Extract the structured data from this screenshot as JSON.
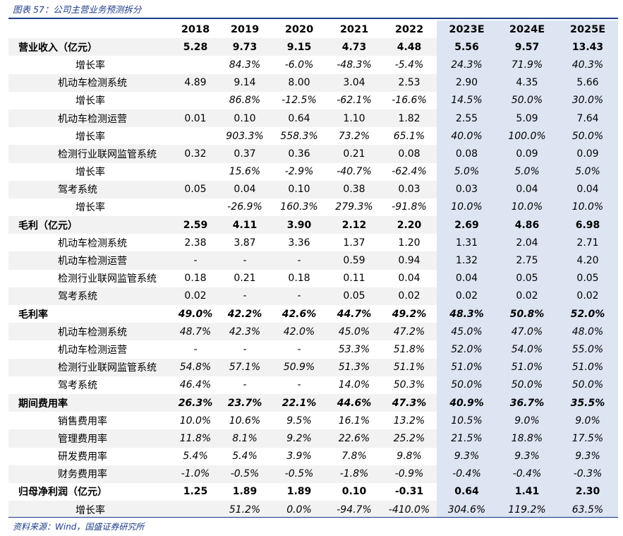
{
  "caption": "图表 57：公司主营业务预测拆分",
  "source": "资料来源：Wind，国盛证券研究所",
  "headers": [
    "2018",
    "2019",
    "2020",
    "2021",
    "2022",
    "2023E",
    "2024E",
    "2025E"
  ],
  "rows": [
    {
      "label": "营业收入（亿元）",
      "kind": "main",
      "italic": false,
      "values": [
        "5.28",
        "9.73",
        "9.15",
        "4.73",
        "4.48",
        "5.56",
        "9.57",
        "13.43"
      ]
    },
    {
      "label": "增长率",
      "kind": "growth",
      "italic": true,
      "values": [
        "",
        "84.3%",
        "-6.0%",
        "-48.3%",
        "-5.4%",
        "24.3%",
        "71.9%",
        "40.3%"
      ]
    },
    {
      "label": "机动车检测系统",
      "kind": "sub",
      "italic": false,
      "values": [
        "4.89",
        "9.14",
        "8.00",
        "3.04",
        "2.53",
        "2.90",
        "4.35",
        "5.66"
      ]
    },
    {
      "label": "增长率",
      "kind": "growth",
      "italic": true,
      "values": [
        "",
        "86.8%",
        "-12.5%",
        "-62.1%",
        "-16.6%",
        "14.5%",
        "50.0%",
        "30.0%"
      ]
    },
    {
      "label": "机动车检测运营",
      "kind": "sub",
      "italic": false,
      "values": [
        "0.01",
        "0.10",
        "0.64",
        "1.10",
        "1.82",
        "2.55",
        "5.09",
        "7.64"
      ]
    },
    {
      "label": "增长率",
      "kind": "growth",
      "italic": true,
      "values": [
        "",
        "903.3%",
        "558.3%",
        "73.2%",
        "65.1%",
        "40.0%",
        "100.0%",
        "50.0%"
      ]
    },
    {
      "label": "检测行业联网监管系统",
      "kind": "sub",
      "italic": false,
      "values": [
        "0.32",
        "0.37",
        "0.36",
        "0.21",
        "0.08",
        "0.08",
        "0.09",
        "0.09"
      ]
    },
    {
      "label": "增长率",
      "kind": "growth",
      "italic": true,
      "values": [
        "",
        "15.6%",
        "-2.9%",
        "-40.7%",
        "-62.4%",
        "5.0%",
        "5.0%",
        "5.0%"
      ]
    },
    {
      "label": "驾考系统",
      "kind": "sub",
      "italic": false,
      "values": [
        "0.05",
        "0.04",
        "0.10",
        "0.38",
        "0.03",
        "0.03",
        "0.04",
        "0.04"
      ]
    },
    {
      "label": "增长率",
      "kind": "growth",
      "italic": true,
      "values": [
        "",
        "-26.9%",
        "160.3%",
        "279.3%",
        "-91.8%",
        "10.0%",
        "10.0%",
        "10.0%"
      ]
    },
    {
      "label": "毛利（亿元）",
      "kind": "main",
      "italic": false,
      "values": [
        "2.59",
        "4.11",
        "3.90",
        "2.12",
        "2.20",
        "2.69",
        "4.86",
        "6.98"
      ]
    },
    {
      "label": "机动车检测系统",
      "kind": "sub",
      "italic": false,
      "values": [
        "2.38",
        "3.87",
        "3.36",
        "1.37",
        "1.20",
        "1.31",
        "2.04",
        "2.71"
      ]
    },
    {
      "label": "机动车检测运营",
      "kind": "sub",
      "italic": false,
      "values": [
        "-",
        "-",
        "-",
        "0.59",
        "0.94",
        "1.32",
        "2.75",
        "4.20"
      ]
    },
    {
      "label": "检测行业联网监管系统",
      "kind": "sub",
      "italic": false,
      "values": [
        "0.18",
        "0.21",
        "0.18",
        "0.11",
        "0.04",
        "0.04",
        "0.05",
        "0.05"
      ]
    },
    {
      "label": "驾考系统",
      "kind": "sub",
      "italic": false,
      "values": [
        "0.02",
        "-",
        "-",
        "0.05",
        "0.02",
        "0.02",
        "0.02",
        "0.02"
      ]
    },
    {
      "label": "毛利率",
      "kind": "main",
      "italic": true,
      "values": [
        "49.0%",
        "42.2%",
        "42.6%",
        "44.7%",
        "49.2%",
        "48.3%",
        "50.8%",
        "52.0%"
      ]
    },
    {
      "label": "机动车检测系统",
      "kind": "sub",
      "italic": true,
      "values": [
        "48.7%",
        "42.3%",
        "42.0%",
        "45.0%",
        "47.2%",
        "45.0%",
        "47.0%",
        "48.0%"
      ]
    },
    {
      "label": "机动车检测运营",
      "kind": "sub",
      "italic": true,
      "values": [
        "-",
        "-",
        "-",
        "53.3%",
        "51.8%",
        "52.0%",
        "54.0%",
        "55.0%"
      ]
    },
    {
      "label": "检测行业联网监管系统",
      "kind": "sub",
      "italic": true,
      "values": [
        "54.8%",
        "57.1%",
        "50.9%",
        "51.3%",
        "51.1%",
        "51.0%",
        "51.0%",
        "51.0%"
      ]
    },
    {
      "label": "驾考系统",
      "kind": "sub",
      "italic": true,
      "values": [
        "46.4%",
        "-",
        "-",
        "14.0%",
        "50.3%",
        "50.0%",
        "50.0%",
        "50.0%"
      ]
    },
    {
      "label": "期间费用率",
      "kind": "main",
      "italic": true,
      "values": [
        "26.3%",
        "23.7%",
        "22.1%",
        "44.6%",
        "47.3%",
        "40.9%",
        "36.7%",
        "35.5%"
      ]
    },
    {
      "label": "销售费用率",
      "kind": "sub",
      "italic": true,
      "values": [
        "10.0%",
        "10.6%",
        "9.5%",
        "16.1%",
        "13.2%",
        "10.5%",
        "9.0%",
        "9.0%"
      ]
    },
    {
      "label": "管理费用率",
      "kind": "sub",
      "italic": true,
      "values": [
        "11.8%",
        "8.1%",
        "9.2%",
        "22.6%",
        "25.2%",
        "21.5%",
        "18.8%",
        "17.5%"
      ]
    },
    {
      "label": "研发费用率",
      "kind": "sub",
      "italic": true,
      "values": [
        "5.4%",
        "5.4%",
        "3.9%",
        "7.8%",
        "9.8%",
        "9.3%",
        "9.3%",
        "9.3%"
      ]
    },
    {
      "label": "财务费用率",
      "kind": "sub",
      "italic": true,
      "values": [
        "-1.0%",
        "-0.5%",
        "-0.5%",
        "-1.8%",
        "-0.9%",
        "-0.4%",
        "-0.4%",
        "-0.3%"
      ]
    },
    {
      "label": "归母净利润（亿元）",
      "kind": "main",
      "italic": false,
      "values": [
        "1.25",
        "1.89",
        "1.89",
        "0.10",
        "-0.31",
        "0.64",
        "1.41",
        "2.30"
      ]
    },
    {
      "label": "增长率",
      "kind": "growth",
      "italic": true,
      "values": [
        "",
        "51.2%",
        "0.0%",
        "-94.7%",
        "-410.0%",
        "304.6%",
        "119.2%",
        "63.5%"
      ]
    }
  ],
  "colors": {
    "accent": "#1f3c88",
    "forecast_bg": "#dde5f2",
    "row_shade": "#f2f2f2"
  }
}
